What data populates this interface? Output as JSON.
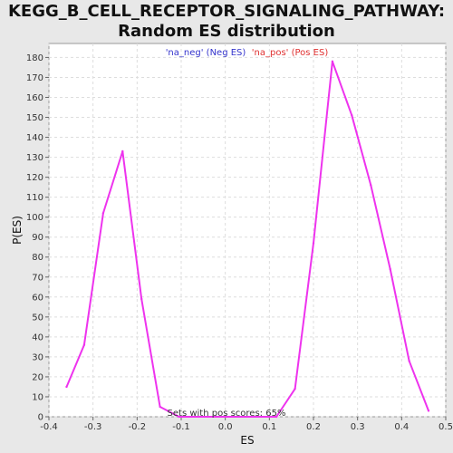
{
  "chart_data": {
    "type": "line",
    "title": "KEGG_B_CELL_RECEPTOR_SIGNALING_PATHWAY:",
    "subtitle": "Random ES distribution",
    "xlabel": "ES",
    "ylabel": "P(ES)",
    "xlim": [
      -0.4,
      0.5
    ],
    "ylim": [
      0,
      187
    ],
    "x_ticks": [
      "-0.4",
      "-0.3",
      "-0.2",
      "-0.1",
      "0.0",
      "0.1",
      "0.2",
      "0.3",
      "0.4",
      "0.5"
    ],
    "y_ticks": [
      "0",
      "10",
      "20",
      "30",
      "40",
      "50",
      "60",
      "70",
      "80",
      "90",
      "100",
      "110",
      "120",
      "130",
      "140",
      "150",
      "160",
      "170",
      "180"
    ],
    "grid": true,
    "legend": [
      {
        "label": "'na_neg' (Neg ES)",
        "color": "#3333cc"
      },
      {
        "label": "'na_pos' (Pos ES)",
        "color": "#e03030"
      }
    ],
    "annotation": "Sets with pos scores: 65%",
    "line_color": "#ee33ee",
    "series": [
      {
        "x": [
          -0.36,
          -0.32,
          -0.277,
          -0.233,
          -0.19,
          -0.148,
          -0.105,
          0.116,
          0.158,
          0.2,
          0.243,
          0.287,
          0.33,
          0.374,
          0.417,
          0.461
        ],
        "y": [
          15,
          36,
          102,
          133,
          59,
          5,
          0,
          0,
          14,
          87,
          178,
          151,
          116,
          74,
          28,
          3
        ]
      }
    ]
  }
}
